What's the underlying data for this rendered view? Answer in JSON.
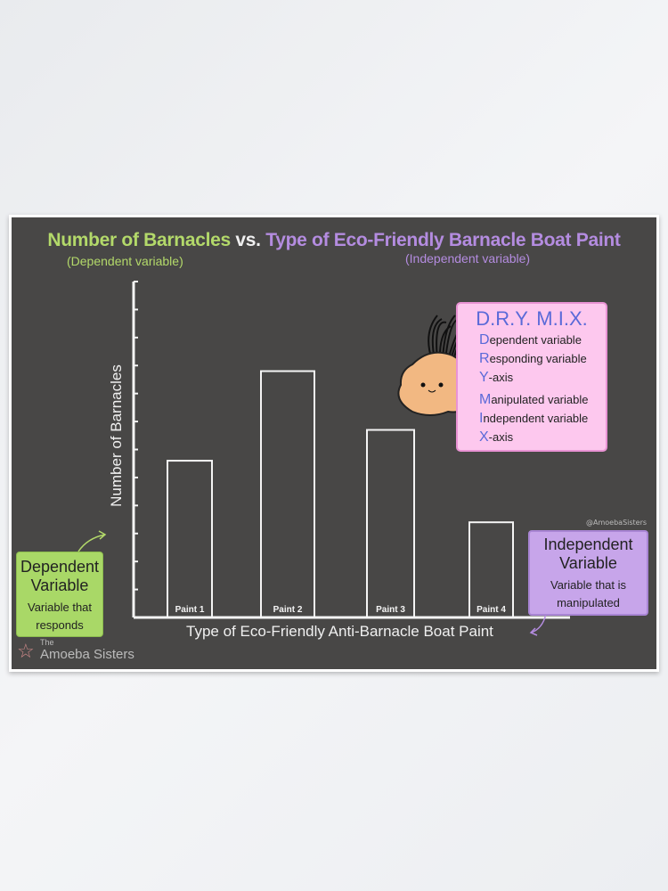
{
  "title": {
    "dependent": "Number of Barnacles",
    "vs": "vs.",
    "independent": "Type of Eco-Friendly Barnacle Boat Paint",
    "dependent_sub": "(Dependent variable)",
    "independent_sub": "(Independent variable)"
  },
  "dry_mix": {
    "title": "D.R.Y. M.I.X.",
    "lines": [
      {
        "letter": "D",
        "rest": "ependent variable"
      },
      {
        "letter": "R",
        "rest": "esponding variable"
      },
      {
        "letter": "Y",
        "rest": "-axis"
      },
      {
        "letter": "M",
        "rest": "anipulated variable"
      },
      {
        "letter": "I",
        "rest": "ndependent variable"
      },
      {
        "letter": "X",
        "rest": "-axis"
      }
    ]
  },
  "dependent_box": {
    "heading": "Dependent Variable",
    "text": "Variable that responds"
  },
  "independent_box": {
    "heading": "Independent Variable",
    "text": "Variable that is manipulated"
  },
  "handle": "@AmoebaSisters",
  "logo": {
    "small": "The",
    "name": "Amoeba Sisters"
  },
  "colors": {
    "board": "#484746",
    "dependent": "#b3d96a",
    "independent": "#b48ce0",
    "dry_box": "#fdc8ee",
    "dry_letters": "#5a6ad8"
  },
  "chart_data": {
    "type": "bar",
    "title": "Number of Barnacles vs. Type of Eco-Friendly Barnacle Boat Paint",
    "xlabel": "Type of Eco-Friendly Anti-Barnacle Boat Paint",
    "ylabel": "Number of Barnacles",
    "categories": [
      "Paint 1",
      "Paint 2",
      "Paint 3",
      "Paint 4"
    ],
    "values": [
      5.6,
      8.8,
      6.7,
      3.4
    ],
    "ylim": [
      0,
      12
    ],
    "y_ticks_labeled": false,
    "grid": false
  }
}
